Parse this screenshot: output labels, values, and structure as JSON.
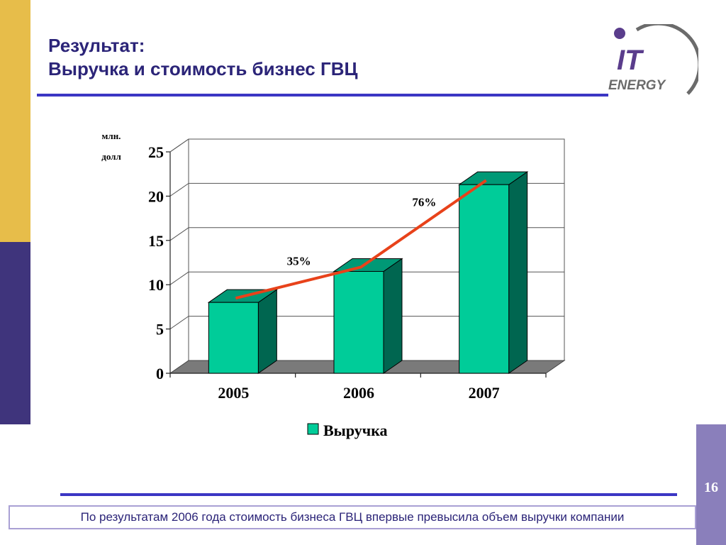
{
  "title": {
    "line1": "Результат:",
    "line2": "Выручка и стоимость бизнес ГВЦ"
  },
  "logo": {
    "line1": "IT",
    "line2": "ENERGY",
    "accent_color": "#5a3d8c",
    "swoosh_color": "#6b6b6b"
  },
  "page_number": "16",
  "caption": "По результатам 2006 года стоимость бизнеса ГВЦ впервые превысила объем выручки компании",
  "colors": {
    "bar_front": "#00cc99",
    "bar_side": "#006650",
    "bar_top": "#009976",
    "growth_line": "#e8421a",
    "title": "#2b2478",
    "accent_gold": "#e7bd4a",
    "accent_purple": "#3f347c",
    "rule": "#3b36c4"
  },
  "chart_data": {
    "type": "bar",
    "categories": [
      "2005",
      "2006",
      "2007"
    ],
    "series": [
      {
        "name": "Выручка",
        "values": [
          8,
          11.5,
          21.3
        ]
      }
    ],
    "ylabel": "млн. долл",
    "ylabel_lines": [
      "млн.",
      "долл"
    ],
    "ylim": [
      0,
      25
    ],
    "yticks": [
      "0",
      "5",
      "10",
      "15",
      "20",
      "25"
    ],
    "grid": true,
    "legend": "bottom",
    "growth_labels": [
      {
        "text": "35%",
        "between": [
          "2005",
          "2006"
        ]
      },
      {
        "text": "76%",
        "between": [
          "2006",
          "2007"
        ]
      }
    ]
  }
}
